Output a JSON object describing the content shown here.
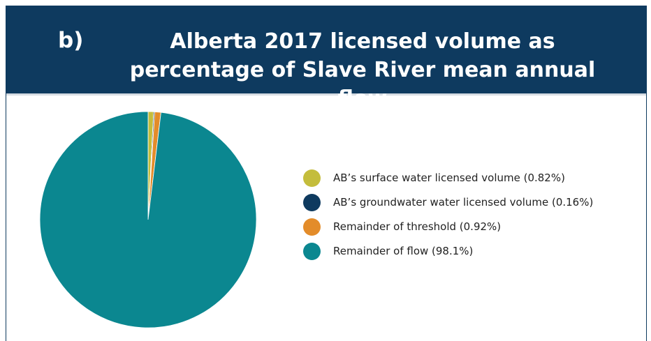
{
  "header": {
    "label": "b)",
    "title": "Alberta 2017 licensed volume as percentage of Slave River mean annual flow"
  },
  "chart_data": {
    "type": "pie",
    "title": "Alberta 2017 licensed volume as percentage of Slave River mean annual flow",
    "slices": [
      {
        "name": "AB’s surface water licensed volume (0.82%)",
        "value": 0.82,
        "color": "#c4bd3c"
      },
      {
        "name": "AB’s groundwater water licensed volume (0.16%)",
        "value": 0.16,
        "color": "#0e3a5f"
      },
      {
        "name": "Remainder of threshold (0.92%)",
        "value": 0.92,
        "color": "#e38c2a"
      },
      {
        "name": "Remainder of flow (98.1%)",
        "value": 98.1,
        "color": "#0b8790"
      }
    ],
    "legend_position": "right"
  }
}
